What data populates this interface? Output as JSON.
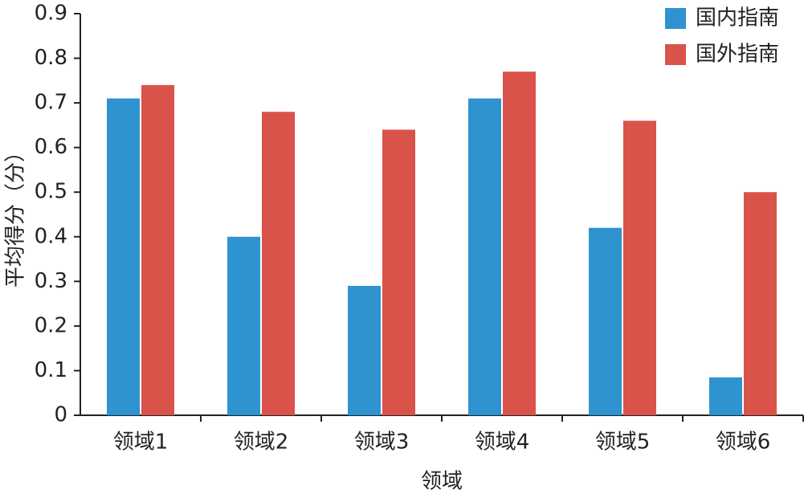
{
  "chart_data": {
    "type": "bar",
    "x_label": "领域",
    "y_label": "平均得分（分）",
    "categories": [
      "领域1",
      "领域2",
      "领域3",
      "领域4",
      "领域5",
      "领域6"
    ],
    "series": [
      {
        "name": "国内指南",
        "color": "#2e93cf",
        "values": [
          0.71,
          0.4,
          0.29,
          0.71,
          0.42,
          0.085
        ]
      },
      {
        "name": "国外指南",
        "color": "#d9534a",
        "values": [
          0.74,
          0.68,
          0.64,
          0.77,
          0.66,
          0.5
        ]
      }
    ],
    "ylim": [
      0,
      0.9
    ],
    "yticks": [
      0,
      0.1,
      0.2,
      0.3,
      0.4,
      0.5,
      0.6,
      0.7,
      0.8,
      0.9
    ],
    "legend": "top-right"
  }
}
